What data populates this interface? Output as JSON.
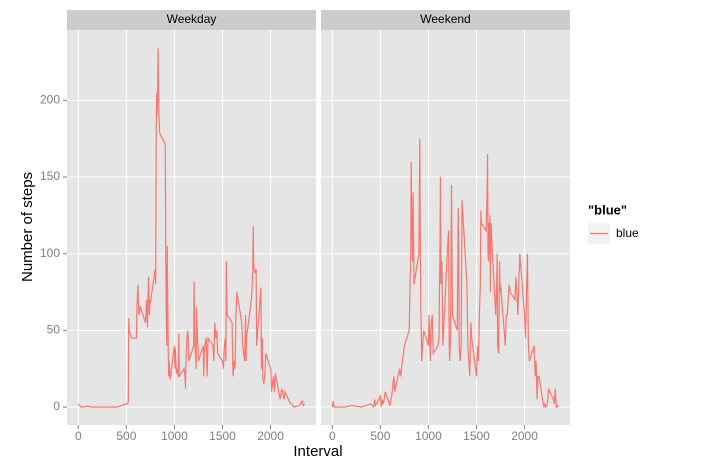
{
  "chart_data": {
    "type": "line",
    "color": "#f8766d",
    "grid": true,
    "x_label": "Interval",
    "y_label": "Number of steps",
    "legend_title": "\"blue\"",
    "legend_position": "right",
    "series_name": "blue",
    "xlim": [
      -117.75,
      2472.75
    ],
    "ylim": [
      -11.7,
      245.9
    ],
    "xticks": [
      0,
      500,
      1000,
      1500,
      2000
    ],
    "yticks": [
      0,
      50,
      100,
      150,
      200
    ],
    "panels": [
      {
        "title": "Weekday",
        "x": [
          0,
          30,
          100,
          130,
          200,
          230,
          300,
          330,
          400,
          430,
          500,
          520,
          525,
          530,
          555,
          605,
          610,
          620,
          630,
          645,
          700,
          710,
          720,
          730,
          740,
          745,
          750,
          800,
          805,
          810,
          815,
          820,
          825,
          830,
          835,
          840,
          845,
          850,
          900,
          905,
          910,
          915,
          920,
          925,
          930,
          935,
          940,
          945,
          955,
          1000,
          1005,
          1010,
          1015,
          1020,
          1030,
          1040,
          1045,
          1050,
          1100,
          1110,
          1115,
          1120,
          1130,
          1140,
          1150,
          1200,
          1205,
          1210,
          1215,
          1225,
          1230,
          1240,
          1250,
          1300,
          1305,
          1310,
          1320,
          1330,
          1340,
          1350,
          1400,
          1410,
          1420,
          1430,
          1440,
          1450,
          1500,
          1510,
          1520,
          1530,
          1535,
          1540,
          1545,
          1550,
          1600,
          1605,
          1610,
          1620,
          1630,
          1640,
          1650,
          1700,
          1710,
          1720,
          1730,
          1740,
          1745,
          1750,
          1800,
          1810,
          1815,
          1820,
          1825,
          1830,
          1835,
          1840,
          1850,
          1855,
          1900,
          1905,
          1910,
          1915,
          1920,
          1930,
          1940,
          1950,
          2000,
          2005,
          2010,
          2020,
          2030,
          2040,
          2050,
          2100,
          2110,
          2120,
          2130,
          2140,
          2150,
          2200,
          2220,
          2240,
          2300,
          2320,
          2330,
          2340,
          2355
        ],
        "values": [
          2,
          0,
          0.5,
          0,
          0,
          0,
          0,
          0,
          0,
          0.5,
          2,
          3,
          58,
          50,
          45,
          45,
          65,
          80,
          60,
          65,
          55,
          70,
          52,
          85,
          60,
          70,
          68,
          90,
          80,
          175,
          205,
          190,
          200,
          234,
          210,
          188,
          180,
          178,
          172,
          170,
          100,
          60,
          40,
          105,
          70,
          40,
          20,
          30,
          18,
          40,
          25,
          38,
          30,
          22,
          25,
          20,
          48,
          20,
          25,
          20,
          12,
          30,
          45,
          50,
          30,
          40,
          82,
          50,
          40,
          25,
          65,
          45,
          30,
          40,
          20,
          35,
          42,
          45,
          20,
          45,
          40,
          30,
          55,
          45,
          50,
          35,
          30,
          25,
          40,
          45,
          30,
          95,
          70,
          60,
          55,
          35,
          20,
          30,
          25,
          60,
          75,
          55,
          40,
          35,
          30,
          60,
          30,
          45,
          70,
          80,
          90,
          118,
          92,
          90,
          88,
          88,
          90,
          40,
          78,
          25,
          30,
          45,
          20,
          15,
          20,
          35,
          25,
          22,
          10,
          15,
          20,
          10,
          22,
          5,
          10,
          12,
          8,
          5,
          10,
          3,
          2,
          0,
          1,
          3,
          4,
          1,
          2
        ]
      },
      {
        "title": "Weekend",
        "x": [
          0,
          10,
          20,
          100,
          130,
          200,
          300,
          400,
          430,
          440,
          450,
          500,
          510,
          520,
          530,
          540,
          550,
          600,
          610,
          620,
          630,
          640,
          650,
          700,
          710,
          720,
          730,
          740,
          750,
          800,
          810,
          815,
          820,
          825,
          830,
          835,
          840,
          845,
          850,
          900,
          905,
          910,
          915,
          920,
          930,
          940,
          950,
          1000,
          1005,
          1010,
          1020,
          1030,
          1040,
          1050,
          1100,
          1110,
          1115,
          1120,
          1125,
          1130,
          1140,
          1150,
          1200,
          1210,
          1215,
          1220,
          1230,
          1240,
          1245,
          1250,
          1300,
          1310,
          1315,
          1320,
          1330,
          1340,
          1350,
          1400,
          1410,
          1420,
          1430,
          1440,
          1450,
          1500,
          1510,
          1520,
          1530,
          1540,
          1545,
          1550,
          1600,
          1610,
          1615,
          1620,
          1625,
          1630,
          1635,
          1640,
          1645,
          1650,
          1700,
          1710,
          1715,
          1720,
          1730,
          1740,
          1745,
          1750,
          1800,
          1810,
          1820,
          1830,
          1840,
          1850,
          1900,
          1910,
          1920,
          1930,
          1940,
          1950,
          2000,
          2010,
          2020,
          2030,
          2040,
          2050,
          2100,
          2110,
          2120,
          2130,
          2140,
          2150,
          2200,
          2210,
          2220,
          2230,
          2240,
          2250,
          2300,
          2310,
          2320,
          2330,
          2340,
          2355
        ],
        "values": [
          0,
          4,
          0,
          0,
          0,
          1,
          0,
          2,
          0,
          5,
          1,
          7,
          0,
          5,
          2,
          5,
          10,
          1,
          5,
          8,
          15,
          20,
          10,
          25,
          20,
          25,
          30,
          35,
          40,
          50,
          85,
          90,
          160,
          130,
          110,
          95,
          140,
          110,
          80,
          100,
          130,
          175,
          110,
          70,
          30,
          40,
          50,
          40,
          60,
          55,
          30,
          55,
          60,
          35,
          40,
          45,
          80,
          100,
          150,
          80,
          95,
          40,
          105,
          115,
          50,
          30,
          45,
          145,
          100,
          60,
          50,
          130,
          110,
          40,
          30,
          40,
          135,
          80,
          40,
          30,
          20,
          55,
          45,
          20,
          40,
          30,
          60,
          80,
          128,
          120,
          115,
          140,
          165,
          100,
          95,
          120,
          100,
          125,
          75,
          120,
          60,
          80,
          100,
          40,
          35,
          95,
          75,
          80,
          40,
          60,
          60,
          70,
          80,
          75,
          70,
          85,
          75,
          60,
          80,
          100,
          60,
          45,
          75,
          100,
          40,
          30,
          40,
          20,
          30,
          5,
          20,
          20,
          0,
          2,
          0,
          1,
          3,
          12,
          5,
          2,
          12,
          0,
          1,
          0
        ]
      }
    ]
  }
}
